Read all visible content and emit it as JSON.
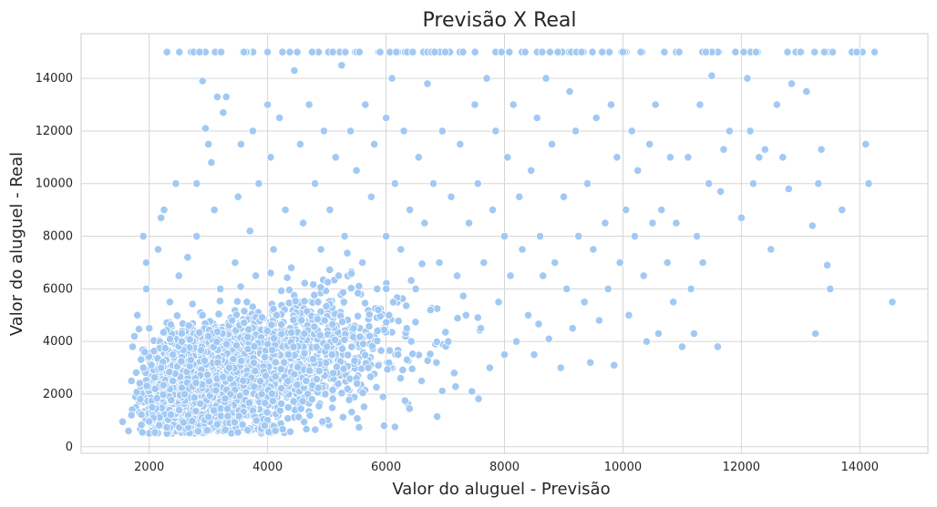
{
  "chart_data": {
    "type": "scatter",
    "title": "Previsão X Real",
    "xlabel": "Valor do aluguel - Previsão",
    "ylabel": "Valor do aluguel - Real",
    "xlim": [
      850,
      15150
    ],
    "ylim": [
      -250,
      15700
    ],
    "xticks": [
      2000,
      4000,
      6000,
      8000,
      10000,
      12000,
      14000
    ],
    "yticks": [
      0,
      2000,
      4000,
      6000,
      8000,
      10000,
      12000,
      14000
    ],
    "grid": true,
    "marker_color": "#a1c9f4",
    "points": [
      [
        1550,
        950
      ],
      [
        1650,
        600
      ],
      [
        1700,
        1200
      ],
      [
        1700,
        2500
      ],
      [
        1720,
        3800
      ],
      [
        1750,
        4200
      ],
      [
        1800,
        5000
      ],
      [
        1850,
        1800
      ],
      [
        1900,
        3000
      ],
      [
        1900,
        8000
      ],
      [
        1950,
        6000
      ],
      [
        1950,
        7000
      ],
      [
        2000,
        4500
      ],
      [
        2050,
        1500
      ],
      [
        2100,
        2200
      ],
      [
        2150,
        7500
      ],
      [
        2200,
        8700
      ],
      [
        2200,
        3000
      ],
      [
        2250,
        9000
      ],
      [
        2300,
        15000
      ],
      [
        2350,
        5500
      ],
      [
        2400,
        2500
      ],
      [
        2400,
        3500
      ],
      [
        2450,
        10000
      ],
      [
        2500,
        6500
      ],
      [
        2550,
        4000
      ],
      [
        2600,
        2000
      ],
      [
        2650,
        7200
      ],
      [
        2700,
        3300
      ],
      [
        2750,
        15000
      ],
      [
        2800,
        8000
      ],
      [
        2800,
        10000
      ],
      [
        2850,
        15000
      ],
      [
        2900,
        13900
      ],
      [
        2900,
        5000
      ],
      [
        2950,
        12100
      ],
      [
        3000,
        11500
      ],
      [
        3000,
        4200
      ],
      [
        3050,
        10800
      ],
      [
        3100,
        9000
      ],
      [
        3150,
        13300
      ],
      [
        3200,
        6000
      ],
      [
        3250,
        12700
      ],
      [
        3300,
        13300
      ],
      [
        3350,
        3000
      ],
      [
        3400,
        4800
      ],
      [
        3450,
        7000
      ],
      [
        3500,
        9500
      ],
      [
        3550,
        11500
      ],
      [
        3600,
        15000
      ],
      [
        3650,
        5500
      ],
      [
        3700,
        8200
      ],
      [
        3750,
        12000
      ],
      [
        3800,
        6500
      ],
      [
        3850,
        10000
      ],
      [
        3900,
        2000
      ],
      [
        3950,
        800
      ],
      [
        4000,
        15000
      ],
      [
        4000,
        13000
      ],
      [
        4050,
        11000
      ],
      [
        4100,
        7500
      ],
      [
        4150,
        5000
      ],
      [
        4200,
        12500
      ],
      [
        4250,
        15000
      ],
      [
        4300,
        9000
      ],
      [
        4350,
        3500
      ],
      [
        4400,
        6800
      ],
      [
        4450,
        14300
      ],
      [
        4500,
        15000
      ],
      [
        4550,
        11500
      ],
      [
        4600,
        8500
      ],
      [
        4650,
        2500
      ],
      [
        4700,
        13000
      ],
      [
        4750,
        15000
      ],
      [
        4800,
        10000
      ],
      [
        4850,
        5500
      ],
      [
        4900,
        7500
      ],
      [
        4950,
        12000
      ],
      [
        5000,
        3800
      ],
      [
        5050,
        9000
      ],
      [
        5100,
        15000
      ],
      [
        5150,
        11000
      ],
      [
        5200,
        6500
      ],
      [
        5250,
        14500
      ],
      [
        5300,
        8000
      ],
      [
        5350,
        2200
      ],
      [
        5400,
        12000
      ],
      [
        5450,
        4500
      ],
      [
        5500,
        10500
      ],
      [
        5550,
        15000
      ],
      [
        5600,
        7000
      ],
      [
        5650,
        13000
      ],
      [
        5700,
        3000
      ],
      [
        5750,
        9500
      ],
      [
        5800,
        11500
      ],
      [
        5850,
        6000
      ],
      [
        5900,
        15000
      ],
      [
        5950,
        1900
      ],
      [
        6000,
        12500
      ],
      [
        6000,
        8000
      ],
      [
        6050,
        5000
      ],
      [
        6100,
        14000
      ],
      [
        6150,
        10000
      ],
      [
        6200,
        3500
      ],
      [
        6250,
        7500
      ],
      [
        6300,
        12000
      ],
      [
        6350,
        4500
      ],
      [
        6400,
        9000
      ],
      [
        6450,
        15000
      ],
      [
        6500,
        6000
      ],
      [
        6550,
        11000
      ],
      [
        6600,
        2500
      ],
      [
        6650,
        8500
      ],
      [
        6700,
        13800
      ],
      [
        6750,
        5200
      ],
      [
        6800,
        10000
      ],
      [
        6850,
        3200
      ],
      [
        6900,
        7000
      ],
      [
        6950,
        12000
      ],
      [
        7000,
        15000
      ],
      [
        7050,
        4000
      ],
      [
        7100,
        9500
      ],
      [
        7150,
        2800
      ],
      [
        7200,
        6500
      ],
      [
        7250,
        11500
      ],
      [
        7300,
        15000
      ],
      [
        7350,
        5000
      ],
      [
        7400,
        8500
      ],
      [
        7450,
        2100
      ],
      [
        7500,
        13000
      ],
      [
        7550,
        10000
      ],
      [
        7600,
        4500
      ],
      [
        7650,
        7000
      ],
      [
        7700,
        14000
      ],
      [
        7750,
        3000
      ],
      [
        7800,
        9000
      ],
      [
        7850,
        12000
      ],
      [
        7900,
        5500
      ],
      [
        7950,
        15000
      ],
      [
        8000,
        8000
      ],
      [
        8000,
        3500
      ],
      [
        8050,
        11000
      ],
      [
        8100,
        6500
      ],
      [
        8150,
        13000
      ],
      [
        8200,
        4000
      ],
      [
        8250,
        9500
      ],
      [
        8300,
        7500
      ],
      [
        8350,
        15000
      ],
      [
        8400,
        5000
      ],
      [
        8450,
        10500
      ],
      [
        8500,
        3500
      ],
      [
        8550,
        12500
      ],
      [
        8600,
        8000
      ],
      [
        8650,
        6500
      ],
      [
        8700,
        14000
      ],
      [
        8750,
        4100
      ],
      [
        8800,
        11500
      ],
      [
        8850,
        7000
      ],
      [
        8900,
        15000
      ],
      [
        8950,
        3000
      ],
      [
        9000,
        9500
      ],
      [
        9050,
        6000
      ],
      [
        9100,
        13500
      ],
      [
        9150,
        4500
      ],
      [
        9200,
        12000
      ],
      [
        9250,
        8000
      ],
      [
        9300,
        15000
      ],
      [
        9350,
        5500
      ],
      [
        9400,
        10000
      ],
      [
        9450,
        3200
      ],
      [
        9500,
        7500
      ],
      [
        9550,
        12500
      ],
      [
        9600,
        4800
      ],
      [
        9650,
        15000
      ],
      [
        9700,
        8500
      ],
      [
        9750,
        6000
      ],
      [
        9800,
        13000
      ],
      [
        9850,
        3100
      ],
      [
        9900,
        11000
      ],
      [
        9950,
        7000
      ],
      [
        10000,
        15000
      ],
      [
        10050,
        9000
      ],
      [
        10100,
        5000
      ],
      [
        10150,
        12000
      ],
      [
        10200,
        8000
      ],
      [
        10250,
        10500
      ],
      [
        10300,
        15000
      ],
      [
        10350,
        6500
      ],
      [
        10400,
        4000
      ],
      [
        10450,
        11500
      ],
      [
        10500,
        8500
      ],
      [
        10550,
        13000
      ],
      [
        10600,
        4300
      ],
      [
        10650,
        9000
      ],
      [
        10700,
        15000
      ],
      [
        10750,
        7000
      ],
      [
        10800,
        11000
      ],
      [
        10850,
        5500
      ],
      [
        10900,
        8500
      ],
      [
        10950,
        15000
      ],
      [
        11000,
        3800
      ],
      [
        11100,
        11000
      ],
      [
        11150,
        6000
      ],
      [
        11200,
        4300
      ],
      [
        11250,
        8000
      ],
      [
        11300,
        13000
      ],
      [
        11350,
        7000
      ],
      [
        11400,
        15000
      ],
      [
        11450,
        10000
      ],
      [
        11500,
        14100
      ],
      [
        11600,
        3800
      ],
      [
        11650,
        9700
      ],
      [
        11700,
        11300
      ],
      [
        11800,
        12000
      ],
      [
        11900,
        15000
      ],
      [
        12000,
        8700
      ],
      [
        12100,
        14000
      ],
      [
        12150,
        12000
      ],
      [
        12200,
        10000
      ],
      [
        12300,
        11000
      ],
      [
        12400,
        11300
      ],
      [
        12500,
        7500
      ],
      [
        12600,
        13000
      ],
      [
        12700,
        11000
      ],
      [
        12800,
        9800
      ],
      [
        12850,
        13800
      ],
      [
        13000,
        15000
      ],
      [
        13100,
        13500
      ],
      [
        13200,
        8400
      ],
      [
        13250,
        4300
      ],
      [
        13300,
        10000
      ],
      [
        13350,
        11300
      ],
      [
        13400,
        15000
      ],
      [
        13450,
        6900
      ],
      [
        13500,
        6000
      ],
      [
        13700,
        9000
      ],
      [
        13950,
        15000
      ],
      [
        14100,
        11500
      ],
      [
        14150,
        10000
      ],
      [
        14250,
        15000
      ],
      [
        14550,
        5500
      ]
    ]
  }
}
